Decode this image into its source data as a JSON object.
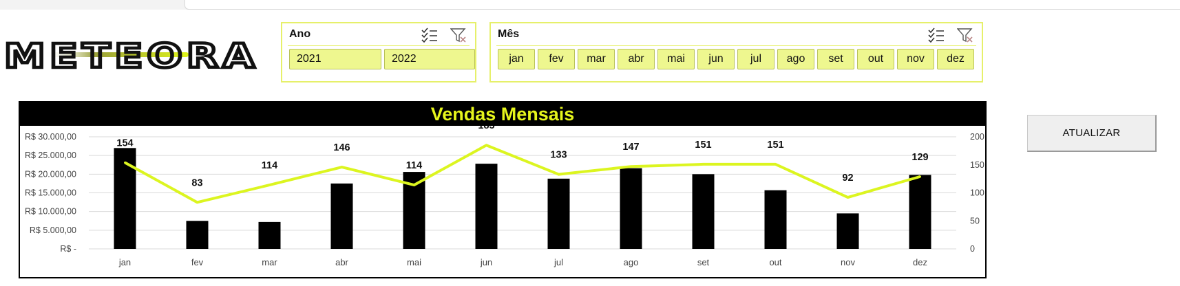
{
  "brand": {
    "logo_text": "METEORA"
  },
  "slicers": {
    "ano": {
      "title": "Ano",
      "items": [
        "2021",
        "2022"
      ]
    },
    "mes": {
      "title": "Mês",
      "items": [
        "jan",
        "fev",
        "mar",
        "abr",
        "mai",
        "jun",
        "jul",
        "ago",
        "set",
        "out",
        "nov",
        "dez"
      ]
    }
  },
  "actions": {
    "refresh_label": "ATUALIZAR"
  },
  "colors": {
    "accent": "#e6f51c",
    "bar": "#000000",
    "line": "#dcf520",
    "grid": "#d9d9d9"
  },
  "chart_data": {
    "type": "bar",
    "title": "Vendas Mensais",
    "categories": [
      "jan",
      "fev",
      "mar",
      "abr",
      "mai",
      "jun",
      "jul",
      "ago",
      "set",
      "out",
      "nov",
      "dez"
    ],
    "series": [
      {
        "type": "bar",
        "axis": "left",
        "values": [
          27000,
          7500,
          7200,
          17500,
          20600,
          22800,
          18800,
          21600,
          20000,
          15700,
          9500,
          19800
        ]
      },
      {
        "type": "line",
        "axis": "right",
        "values": [
          154,
          83,
          114,
          146,
          114,
          185,
          133,
          147,
          151,
          151,
          92,
          129
        ]
      }
    ],
    "y_left": {
      "min": 0,
      "max": 30000,
      "ticks": [
        "R$ -",
        "R$ 5.000,00",
        "R$ 10.000,00",
        "R$ 15.000,00",
        "R$ 20.000,00",
        "R$ 25.000,00",
        "R$ 30.000,00"
      ]
    },
    "y_right": {
      "min": 0,
      "max": 200,
      "ticks": [
        "0",
        "50",
        "100",
        "150",
        "200"
      ]
    },
    "grid": true,
    "legend": "none"
  }
}
